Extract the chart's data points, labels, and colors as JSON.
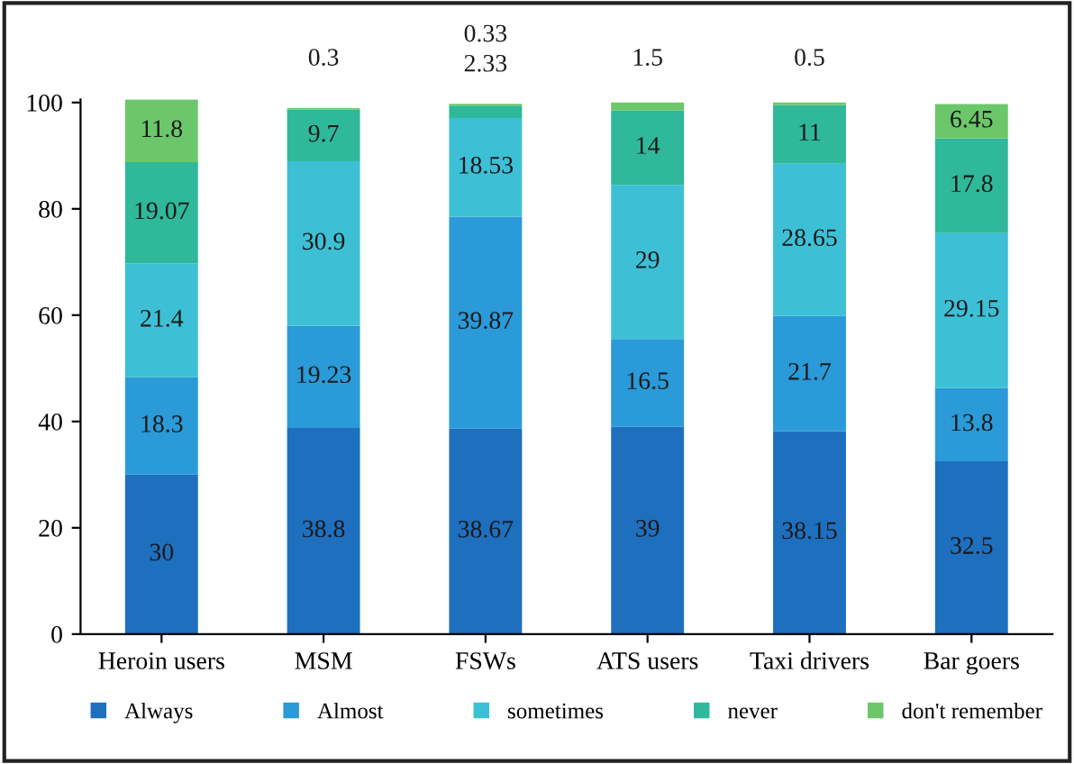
{
  "chart_data": {
    "type": "bar",
    "stacked": true,
    "categories": [
      "Heroin users",
      "MSM",
      "FSWs",
      "ATS users",
      "Taxi drivers",
      "Bar goers"
    ],
    "series": [
      {
        "name": "Always",
        "color": "#1f6fbf",
        "values": [
          30,
          38.8,
          38.67,
          39,
          38.15,
          32.5
        ]
      },
      {
        "name": "Almost",
        "color": "#2a9ad8",
        "values": [
          18.3,
          19.23,
          39.87,
          16.5,
          21.7,
          13.8
        ]
      },
      {
        "name": "sometimes",
        "color": "#3dc0d6",
        "values": [
          21.4,
          30.9,
          18.53,
          29,
          28.65,
          29.15
        ]
      },
      {
        "name": "never",
        "color": "#2fb89a",
        "values": [
          19.07,
          9.7,
          2.33,
          14,
          11,
          17.8
        ]
      },
      {
        "name": "don't remember",
        "color": "#6cc76a",
        "values": [
          11.8,
          0.3,
          0.33,
          1.5,
          0.5,
          6.45
        ]
      }
    ],
    "ylim": [
      0,
      100.6
    ],
    "yticks": [
      0,
      20,
      40,
      60,
      80,
      100
    ],
    "data_labels": true,
    "legend": "bottom",
    "grid": false
  }
}
